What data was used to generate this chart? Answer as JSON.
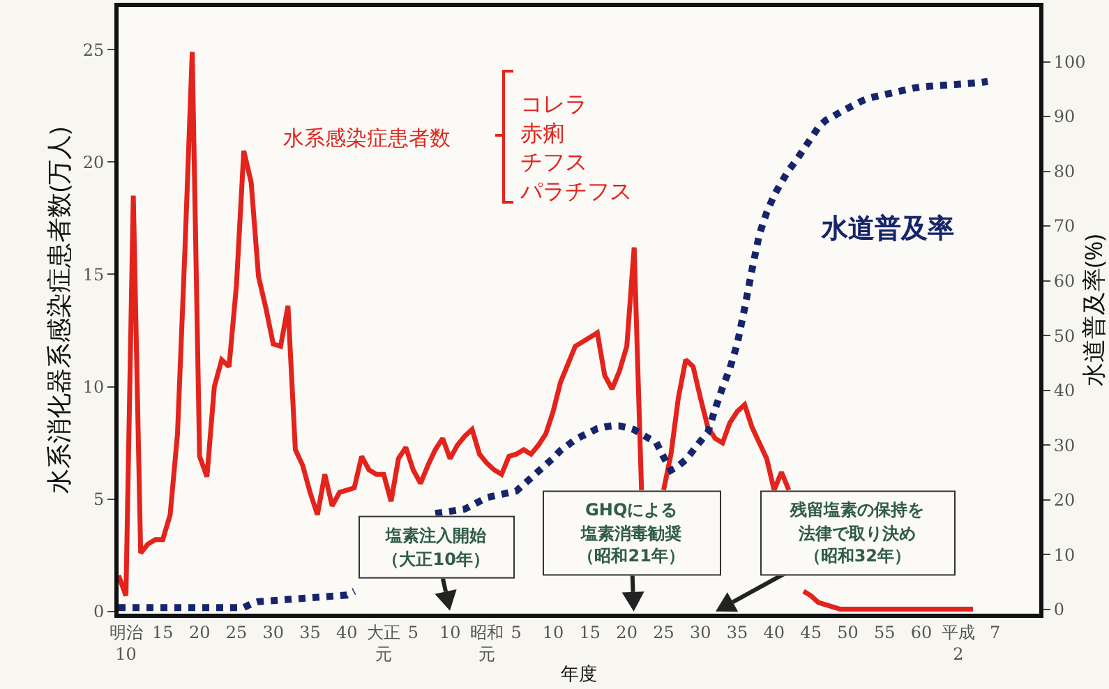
{
  "chart_data": {
    "type": "line",
    "xlabel": "年度",
    "ylabel": "水系消化器系感染症患者数(万人)",
    "y2label": "水道普及率(%)",
    "categories": [
      null,
      "明治10",
      null,
      null,
      null,
      null,
      "15",
      null,
      null,
      null,
      null,
      "20",
      null,
      null,
      null,
      null,
      "25",
      null,
      null,
      null,
      null,
      "30",
      null,
      null,
      null,
      null,
      "35",
      null,
      null,
      null,
      null,
      "40",
      null,
      null,
      null,
      null,
      "大正元",
      null,
      null,
      null,
      "5",
      null,
      null,
      null,
      null,
      "10",
      null,
      null,
      null,
      null,
      "昭和元",
      null,
      null,
      null,
      "5",
      null,
      null,
      null,
      null,
      "10",
      null,
      null,
      null,
      null,
      "15",
      null,
      null,
      null,
      null,
      "20",
      null,
      null,
      null,
      null,
      "25",
      null,
      null,
      null,
      null,
      "30",
      null,
      null,
      null,
      null,
      "35",
      null,
      null,
      null,
      null,
      "40",
      null,
      null,
      null,
      null,
      "45",
      null,
      null,
      null,
      null,
      "50",
      null,
      null,
      null,
      null,
      "55",
      null,
      null,
      null,
      null,
      "60",
      null,
      null,
      null,
      null,
      "平成2",
      null,
      null,
      null,
      null,
      "7",
      null,
      null,
      null,
      null,
      null
    ],
    "series": [
      {
        "name": "水系感染症患者数",
        "color": "#e3231c",
        "line_style": "solid",
        "values": [
          1.6,
          0.7,
          18.5,
          2.6,
          3.0,
          3.2,
          3.2,
          4.3,
          7.9,
          16,
          24.9,
          6.9,
          6.0,
          10,
          11.2,
          10.9,
          14.5,
          20.5,
          19.1,
          14.9,
          13.5,
          11.9,
          11.8,
          13.6,
          7.2,
          6.5,
          5.3,
          4.3,
          6.1,
          4.7,
          5.3,
          5.4,
          5.5,
          6.9,
          6.3,
          6.1,
          6.1,
          4.9,
          6.8,
          7.3,
          6.3,
          5.7,
          6.5,
          7.2,
          7.7,
          6.8,
          7.4,
          7.8,
          8.1,
          7.0,
          6.6,
          6.3,
          6.1,
          6.9,
          7.0,
          7.2,
          7.0,
          7.4,
          7.9,
          8.9,
          10.2,
          11.0,
          11.8,
          12.0,
          12.2,
          12.4,
          10.5,
          9.9,
          10.7,
          11.8,
          16.2,
          5.4,
          null,
          null,
          5.4,
          7.0,
          9.5,
          11.2,
          10.9,
          9.5,
          8.2,
          7.7,
          7.5,
          8.4,
          8.9,
          9.2,
          8.2,
          7.5,
          6.8,
          5.4,
          6.2,
          5.4,
          null,
          0.9,
          0.7,
          0.4,
          0.3,
          0.2,
          0.1,
          0.1,
          0.1,
          0.1,
          0.1,
          0.1,
          0.1,
          0.1,
          0.1,
          0.1,
          0.1,
          0.1,
          0.1,
          0.1,
          0.1,
          0.1,
          0.1,
          0.1,
          0.1,
          null,
          null,
          null,
          null,
          null,
          null,
          null,
          null
        ]
      },
      {
        "name": "水道普及率",
        "color": "#16256b",
        "axis": "y2",
        "line_style": "dotted",
        "values": [
          0.3,
          0.3,
          0.3,
          0.3,
          0.3,
          0.3,
          0.3,
          0.3,
          0.3,
          0.3,
          0.3,
          0.3,
          0.3,
          0.3,
          0.3,
          0.3,
          0.3,
          0.3,
          1.0,
          1.4,
          1.5,
          1.6,
          1.7,
          1.8,
          1.9,
          2.0,
          2.1,
          2.2,
          2.3,
          2.4,
          2.5,
          2.6,
          3.3,
          null,
          null,
          null,
          null,
          null,
          null,
          null,
          null,
          null,
          null,
          17.5,
          17.7,
          17.9,
          18.1,
          18.3,
          19.0,
          19.7,
          20.4,
          20.7,
          21.0,
          21.3,
          21.6,
          22.8,
          24,
          25.2,
          26.4,
          27.6,
          29,
          30,
          31,
          31.7,
          32.3,
          33,
          33.3,
          33.5,
          33.5,
          33.2,
          32.8,
          32,
          31.2,
          30.5,
          27.8,
          25.4,
          26.2,
          27.3,
          29,
          30.7,
          32.3,
          36.6,
          40.5,
          44,
          48.5,
          55,
          62,
          68.5,
          72.5,
          75.6,
          78,
          80.2,
          82,
          84,
          86,
          88,
          89.3,
          90,
          90.8,
          91.5,
          92.2,
          92.9,
          93.4,
          93.7,
          94,
          94.3,
          94.6,
          94.9,
          95.2,
          95.4,
          95.5,
          95.6,
          95.7,
          95.8,
          95.9,
          96,
          96.1,
          96.2,
          96.4,
          null,
          null,
          null,
          null,
          null,
          null
        ]
      }
    ],
    "ylim": [
      -0.1,
      26.9
    ],
    "yticks": [
      0,
      5,
      10,
      15,
      20,
      25
    ],
    "y2lim": [
      -0.8,
      110
    ],
    "y2ticks": [
      0,
      10,
      20,
      30,
      40,
      50,
      60,
      70,
      80,
      90,
      100
    ],
    "annotations": [
      "コレラ赤痢チフスパラチフス",
      "塩素注入開始（大正10年）",
      "GHQによる塩素消毒勧奨（昭和21年）",
      "残留塩素の保持を法律で取り決め（昭和32年）"
    ],
    "grid": false,
    "legend": "top left",
    "marker": "none"
  }
}
